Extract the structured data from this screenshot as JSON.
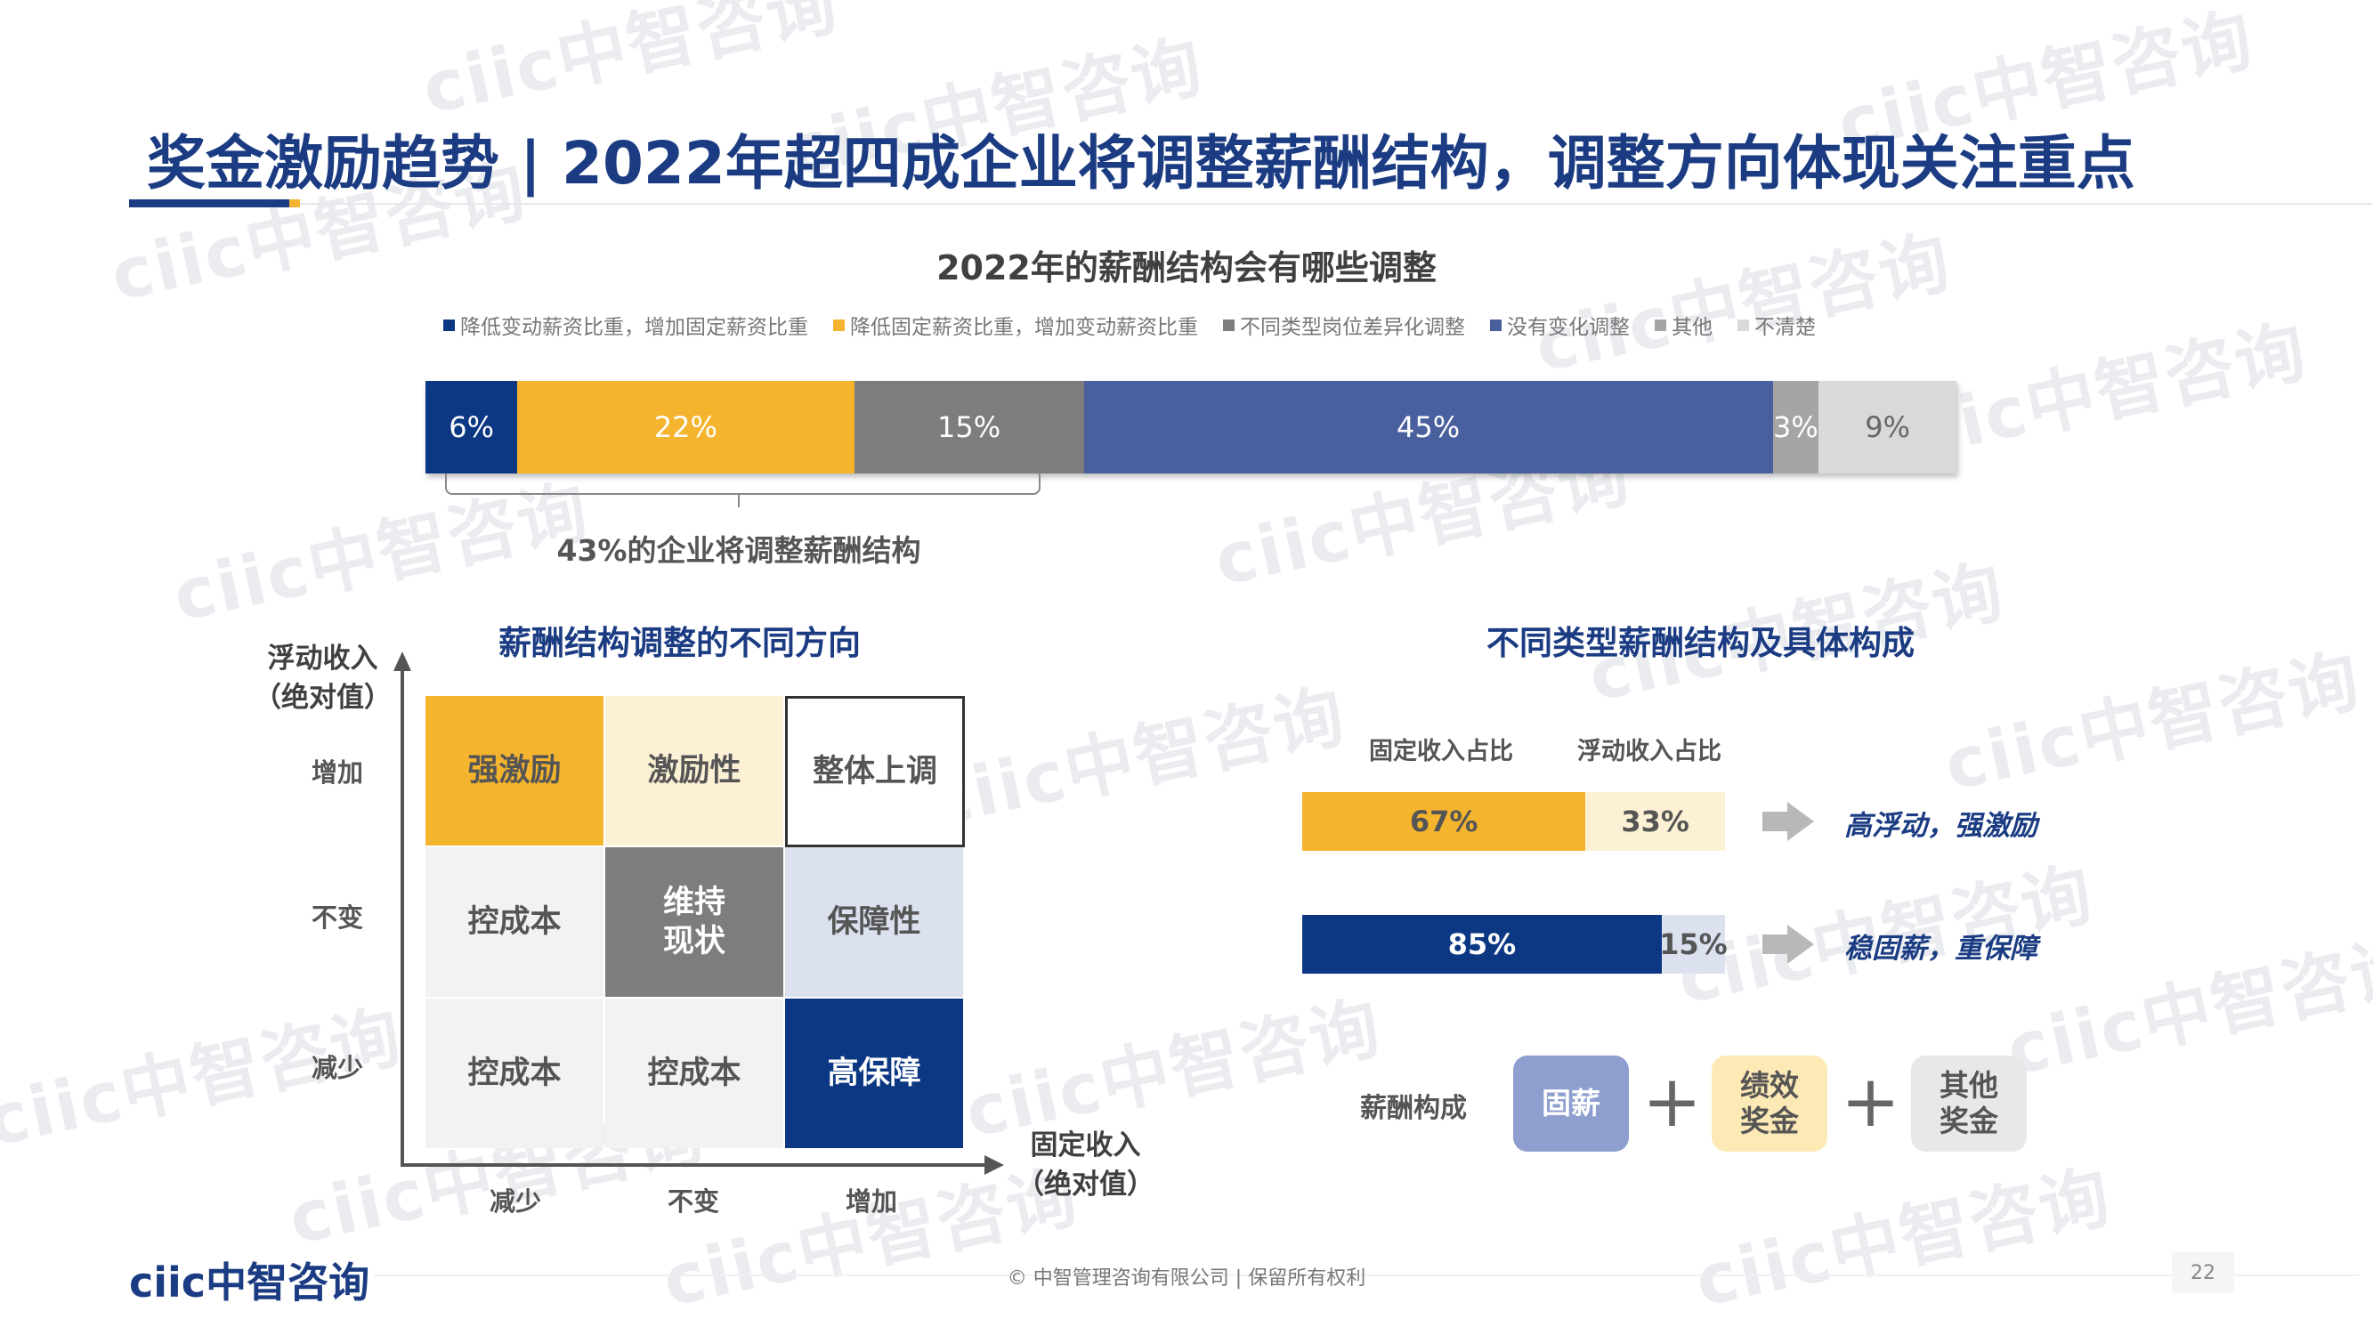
{
  "header": {
    "title": "奖金激励趋势 | 2022年超四成企业将调整薪酬结构，调整方向体现关注重点"
  },
  "watermark_text": "ciic中智咨询",
  "chart_data": [
    {
      "type": "bar",
      "stacked": true,
      "orientation": "horizontal",
      "title": "2022年的薪酬结构会有哪些调整",
      "legend_position": "top",
      "series": [
        {
          "name": "降低变动薪资比重，增加固定薪资比重",
          "value": 6,
          "label": "6%",
          "color": "#0c3883",
          "text_color": "#ffffff"
        },
        {
          "name": "降低固定薪资比重，增加变动薪资比重",
          "value": 22,
          "label": "22%",
          "color": "#f5b42d",
          "text_color": "#ffffff"
        },
        {
          "name": "不同类型岗位差异化调整",
          "value": 15,
          "label": "15%",
          "color": "#7d7d7d",
          "text_color": "#ffffff"
        },
        {
          "name": "没有变化调整",
          "value": 45,
          "label": "45%",
          "color": "#4a5f9e",
          "text_color": "#ffffff"
        },
        {
          "name": "其他",
          "value": 3,
          "label": "3%",
          "color": "#a5a5a5",
          "text_color": "#ffffff"
        },
        {
          "name": "不清楚",
          "value": 9,
          "label": "9%",
          "color": "#d9d9d9",
          "text_color": "#666666"
        }
      ],
      "annotation": "43%的企业将调整薪酬结构"
    },
    {
      "type": "table",
      "title": "薪酬结构调整的不同方向",
      "y_axis_label": "浮动收入\n（绝对值）",
      "x_axis_label": "固定收入\n（绝对值）",
      "rows": [
        "增加",
        "不变",
        "减少"
      ],
      "columns": [
        "减少",
        "不变",
        "增加"
      ],
      "cells": [
        [
          {
            "text": "强激励",
            "bg": "#f5b42d",
            "color": "#555555"
          },
          {
            "text": "激励性",
            "bg": "#fdf1d5",
            "color": "#555555"
          },
          {
            "text": "整体上调",
            "bg": "#ffffff",
            "color": "#555555",
            "border": true
          }
        ],
        [
          {
            "text": "控成本",
            "bg": "#f2f2f2",
            "color": "#555555"
          },
          {
            "text": "维持\n现状",
            "bg": "#7d7d7d",
            "color": "#ffffff"
          },
          {
            "text": "保障性",
            "bg": "#dbe1ef",
            "color": "#555555"
          }
        ],
        [
          {
            "text": "控成本",
            "bg": "#f2f2f2",
            "color": "#555555"
          },
          {
            "text": "控成本",
            "bg": "#f2f2f2",
            "color": "#555555"
          },
          {
            "text": "高保障",
            "bg": "#0c3883",
            "color": "#ffffff"
          }
        ]
      ]
    },
    {
      "type": "bar",
      "stacked": true,
      "orientation": "horizontal",
      "title": "不同类型薪酬结构及具体构成",
      "series_names": [
        "固定收入占比",
        "浮动收入占比"
      ],
      "rows": [
        {
          "fixed": 67,
          "fixed_label": "67%",
          "float": 33,
          "float_label": "33%",
          "fixed_color": "#f5b42d",
          "float_color": "#fdf1d5",
          "fixed_text": "#555555",
          "float_text": "#555555",
          "desc": "高浮动，强激励"
        },
        {
          "fixed": 85,
          "fixed_label": "85%",
          "float": 15,
          "float_label": "15%",
          "fixed_color": "#0c3883",
          "float_color": "#dbe1ef",
          "fixed_text": "#ffffff",
          "float_text": "#555555",
          "desc": "稳固薪，重保障"
        }
      ]
    }
  ],
  "composition": {
    "label": "薪酬构成",
    "items": [
      {
        "text": "固薪",
        "bg": "#8e9fcf",
        "color": "#ffffff"
      },
      {
        "text": "绩效\n奖金",
        "bg": "#fde9b5",
        "color": "#555555"
      },
      {
        "text": "其他\n奖金",
        "bg": "#e8e8e8",
        "color": "#555555"
      }
    ],
    "plus": "+"
  },
  "footer": {
    "logo": "ciic中智咨询",
    "copyright": "© 中智管理咨询有限公司 | 保留所有权利",
    "page": "22"
  }
}
